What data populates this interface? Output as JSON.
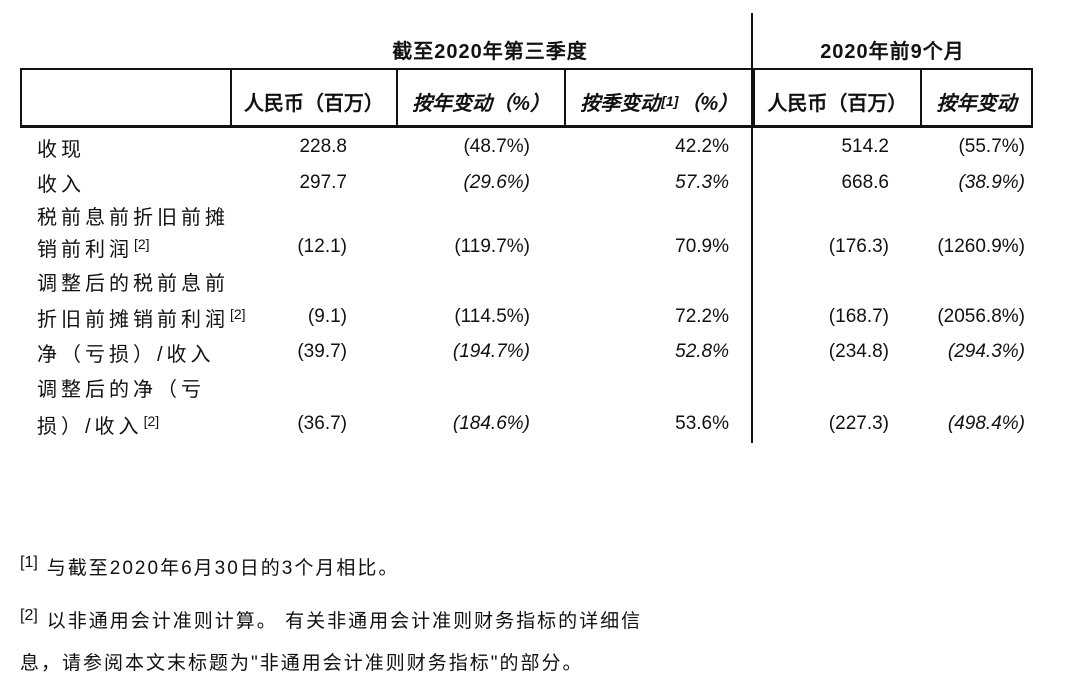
{
  "table": {
    "group_headers": {
      "quarter": "截至2020年第三季度",
      "nine_months": "2020年前9个月"
    },
    "column_headers": [
      {
        "label": "人民币（百万）"
      },
      {
        "label": "按年变动（%）"
      },
      {
        "pre": "按季变动",
        "sup": "[1]",
        "post": "（%）"
      },
      {
        "label": "人民币（百万）"
      },
      {
        "label": "按年变动"
      }
    ],
    "rows": [
      {
        "label": "收现",
        "sup": "",
        "cells": [
          "228.8",
          "(48.7%)",
          "42.2%",
          "514.2",
          "(55.7%)"
        ],
        "italics": [
          false,
          false,
          false,
          false,
          false
        ]
      },
      {
        "label": "收入",
        "sup": "",
        "cells": [
          "297.7",
          "(29.6%)",
          "57.3%",
          "668.6",
          "(38.9%)"
        ],
        "italics": [
          false,
          true,
          true,
          false,
          true
        ]
      },
      {
        "label": "税前息前折旧前摊",
        "sup": "",
        "cells": [
          "",
          "",
          "",
          "",
          ""
        ],
        "italics": [
          false,
          false,
          false,
          false,
          false
        ]
      },
      {
        "label": "销前利润",
        "sup": "[2]",
        "cells": [
          "(12.1)",
          "(119.7%)",
          "70.9%",
          "(176.3)",
          "(1260.9%)"
        ],
        "italics": [
          false,
          false,
          false,
          false,
          false
        ]
      },
      {
        "label": "调整后的税前息前",
        "sup": "",
        "cells": [
          "",
          "",
          "",
          "",
          ""
        ],
        "italics": [
          false,
          false,
          false,
          false,
          false
        ]
      },
      {
        "label": "折旧前摊销前利润",
        "sup": "[2]",
        "cells": [
          "(9.1)",
          "(114.5%)",
          "72.2%",
          "(168.7)",
          "(2056.8%)"
        ],
        "italics": [
          false,
          false,
          false,
          false,
          false
        ]
      },
      {
        "label": "净（亏损）/收入",
        "sup": "",
        "cells": [
          "(39.7)",
          "(194.7%)",
          "52.8%",
          "(234.8)",
          "(294.3%)"
        ],
        "italics": [
          false,
          true,
          true,
          false,
          true
        ]
      },
      {
        "label": "调整后的净（亏",
        "sup": "",
        "cells": [
          "",
          "",
          "",
          "",
          ""
        ],
        "italics": [
          false,
          false,
          false,
          false,
          false
        ]
      },
      {
        "label": "损）/收入",
        "sup": "[2]",
        "cells": [
          "(36.7)",
          "(184.6%)",
          "53.6%",
          "(227.3)",
          "(498.4%)"
        ],
        "italics": [
          false,
          true,
          false,
          false,
          true
        ]
      }
    ]
  },
  "footnotes": [
    {
      "marker": "[1]",
      "lines": [
        "与截至2020年6月30日的3个月相比。"
      ]
    },
    {
      "marker": "[2]",
      "lines": [
        "以非通用会计准则计算。 有关非通用会计准则财务指标的详细信",
        "息，请参阅本文末标题为\"非通用会计准则财务指标\"的部分。"
      ]
    }
  ]
}
